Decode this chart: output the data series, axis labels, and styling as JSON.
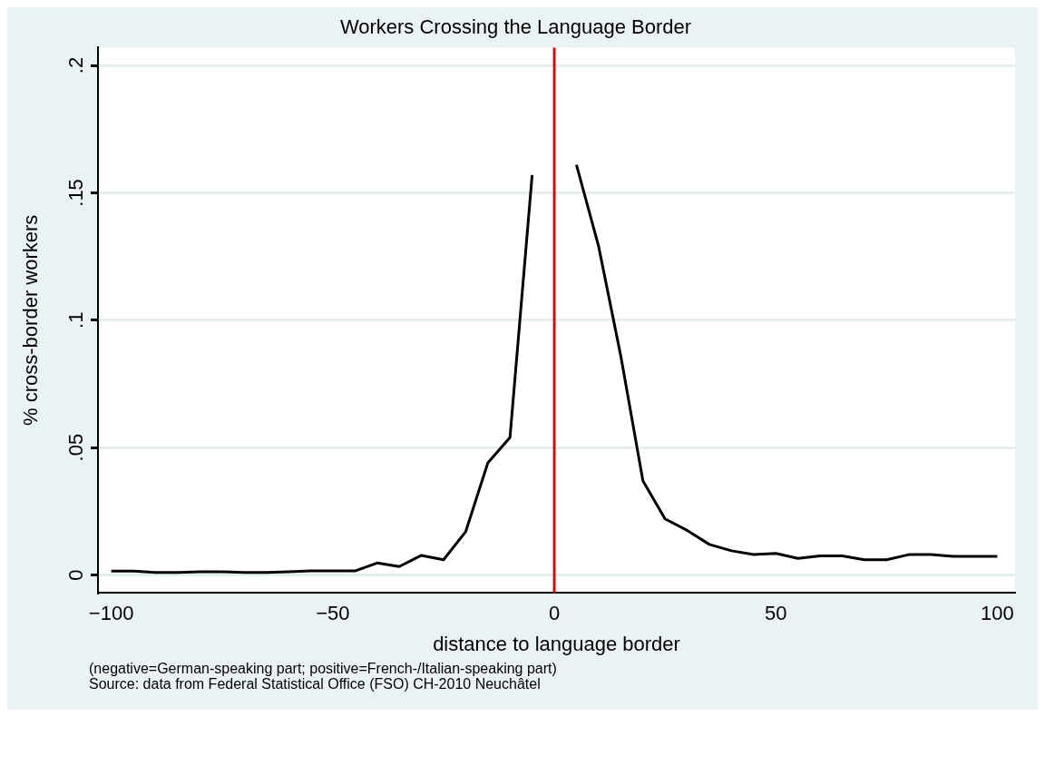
{
  "chart_data": {
    "type": "line",
    "title": "Workers Crossing the Language Border",
    "xlabel": "distance to language border",
    "ylabel": "% cross-border workers",
    "annotations": [
      "(negative=German-speaking part; positive=French-/Italian-speaking part)",
      "Source: data from Federal Statistical Office (FSO) CH-2010 Neuchâtel"
    ],
    "series": [
      {
        "color": "#000000",
        "x": [
          -100,
          -95,
          -90,
          -85,
          -80,
          -75,
          -70,
          -65,
          -60,
          -55,
          -50,
          -45,
          -40,
          -35,
          -30,
          -25,
          -20,
          -15,
          -10,
          -5
        ],
        "values": [
          0.0015,
          0.0015,
          0.001,
          0.001,
          0.0013,
          0.0013,
          0.001,
          0.001,
          0.0013,
          0.0016,
          0.0016,
          0.0016,
          0.0047,
          0.0033,
          0.0077,
          0.006,
          0.017,
          0.044,
          0.054,
          0.157
        ]
      },
      {
        "color": "#000000",
        "x": [
          5,
          10,
          15,
          20,
          25,
          30,
          35,
          40,
          45,
          50,
          55,
          60,
          65,
          70,
          75,
          80,
          85,
          90,
          95,
          100
        ],
        "values": [
          0.161,
          0.129,
          0.086,
          0.037,
          0.022,
          0.0175,
          0.012,
          0.0095,
          0.008,
          0.0085,
          0.0065,
          0.0075,
          0.0075,
          0.006,
          0.006,
          0.008,
          0.008,
          0.0073,
          0.0073,
          0.0073
        ]
      }
    ],
    "xlim": [
      -103,
      104
    ],
    "xticks": [
      {
        "value": -100,
        "label": "−100"
      },
      {
        "value": -50,
        "label": "−50"
      },
      0,
      50,
      100
    ],
    "ylim": [
      -0.007,
      0.207
    ],
    "yticks": [
      {
        "value": 0,
        "label": "0"
      },
      {
        "value": 0.05,
        "label": ".05"
      },
      {
        "value": 0.1,
        "label": ".1"
      },
      {
        "value": 0.15,
        "label": ".15"
      },
      {
        "value": 0.2,
        "label": ".2"
      }
    ],
    "grid": "y",
    "legend": false,
    "marker": "none",
    "line_style": "solid",
    "ref_lines": [
      {
        "axis": "x",
        "value": 0,
        "color": "#cc1111"
      }
    ]
  }
}
